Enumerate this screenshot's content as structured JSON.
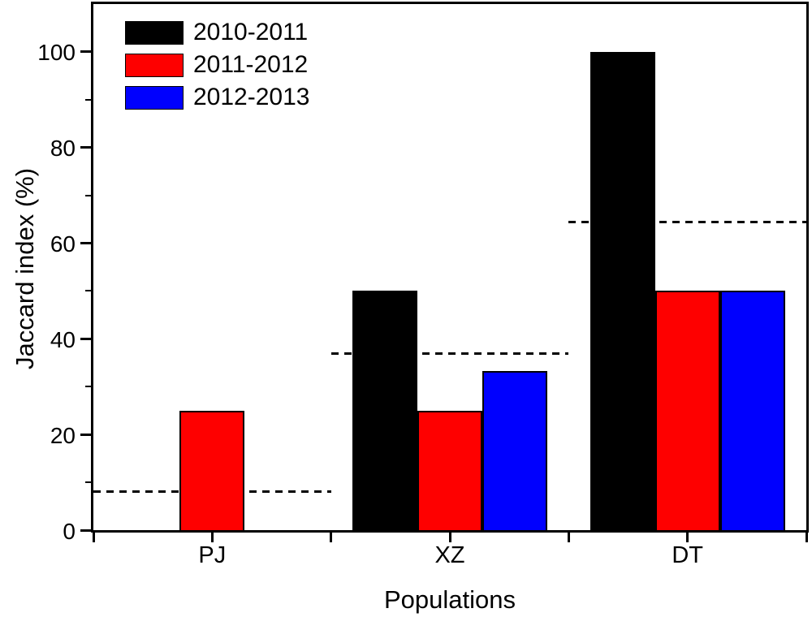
{
  "figure": {
    "background_color": "#ffffff",
    "axis_color": "#000000",
    "text_color": "#000000"
  },
  "chart_data": {
    "type": "bar",
    "title": "",
    "xlabel": "Populations",
    "ylabel": "Jaccard index (%)",
    "categories": [
      "PJ",
      "XZ",
      "DT"
    ],
    "series": [
      {
        "name": "2010-2011",
        "color": "#000000",
        "values": [
          0,
          50,
          100
        ]
      },
      {
        "name": "2011-2012",
        "color": "#fe0000",
        "values": [
          25,
          25,
          50
        ]
      },
      {
        "name": "2012-2013",
        "color": "#0000fe",
        "values": [
          0,
          33.3,
          50
        ]
      }
    ],
    "reference_lines": {
      "style": "dashed",
      "color": "#000000",
      "per_category_values": [
        8,
        37,
        64.5
      ]
    },
    "ylim": [
      0,
      110
    ],
    "yticks_major": [
      0,
      20,
      40,
      60,
      80,
      100
    ],
    "yticks_minor": [
      10,
      30,
      50,
      70,
      90
    ],
    "grid": false,
    "legend_position": "top-left",
    "bar_layout": "grouped-adjacent, zero-value bars not drawn"
  }
}
